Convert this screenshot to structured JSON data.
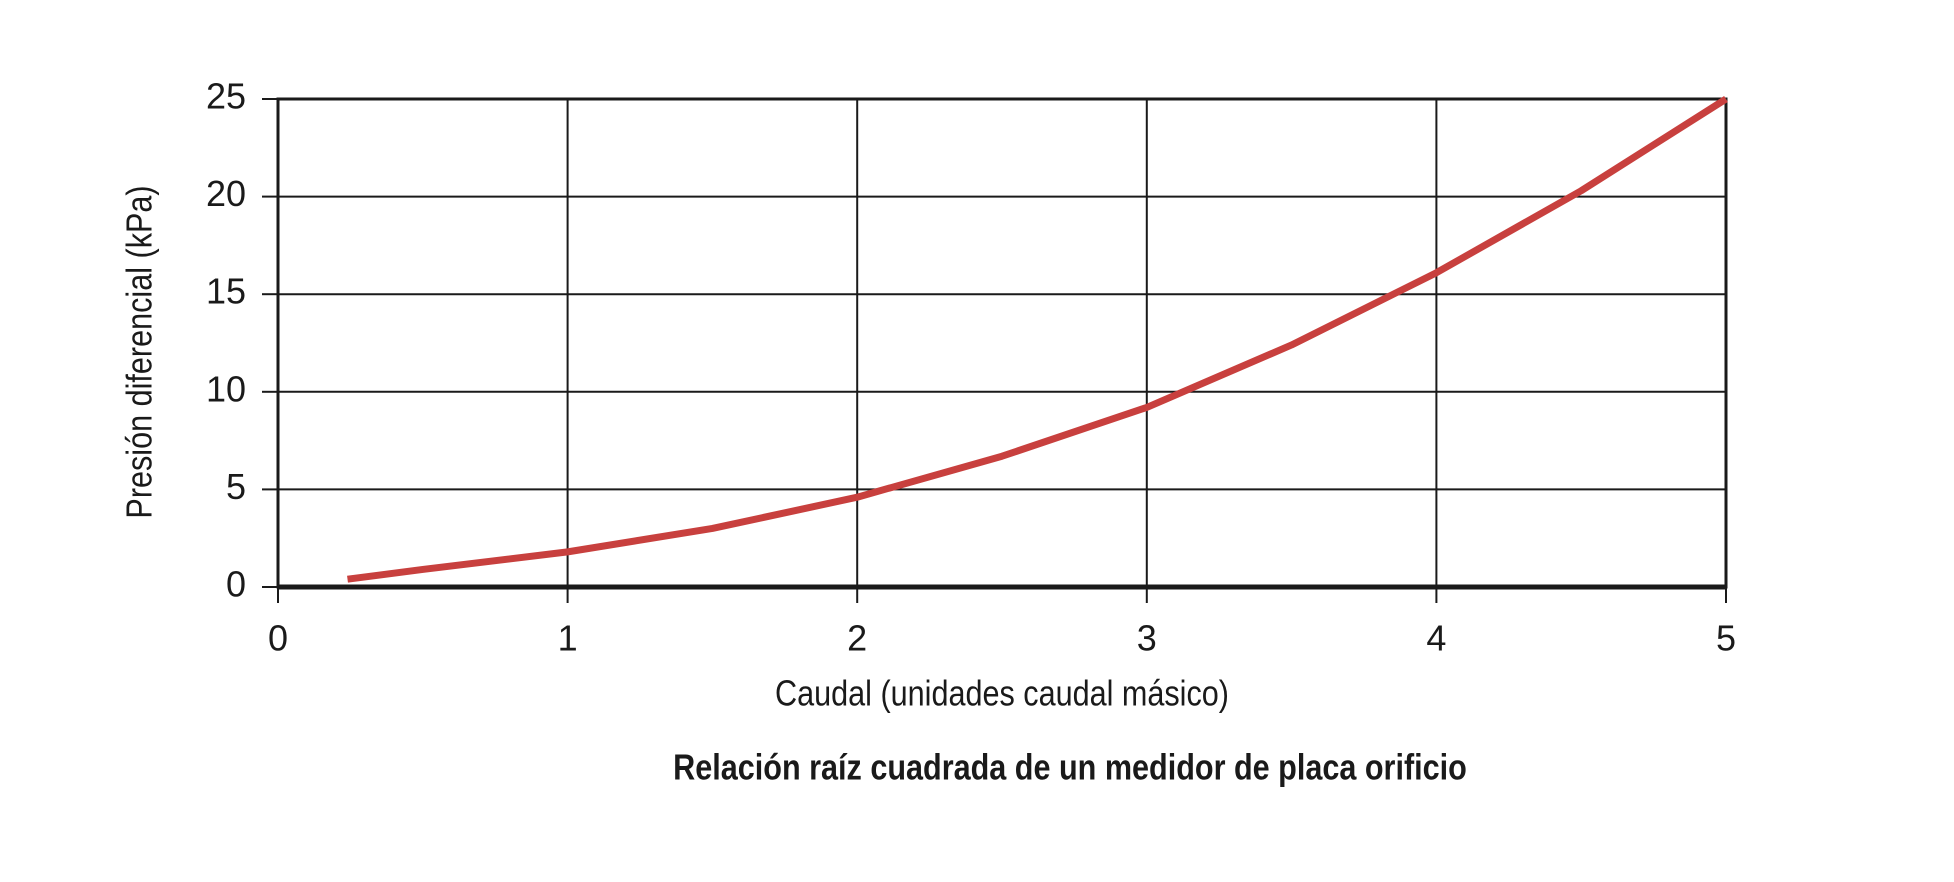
{
  "chart_data": {
    "type": "line",
    "title": "Relación raíz cuadrada de un medidor de placa orificio",
    "xlabel": "Caudal (unidades caudal másico)",
    "ylabel": "Presión diferencial (kPa)",
    "x": [
      0.24,
      0.5,
      1,
      1.5,
      2,
      2.5,
      3,
      3.5,
      4,
      4.5,
      5
    ],
    "series": [
      {
        "name": "Presión diferencial",
        "color": "#c8403e",
        "values": [
          0.4,
          0.9,
          1.8,
          3.0,
          4.6,
          6.7,
          9.2,
          12.4,
          16.1,
          20.3,
          25
        ]
      }
    ],
    "xlim": [
      0,
      5
    ],
    "xticks": [
      0,
      1,
      2,
      3,
      4,
      5
    ],
    "ylim": [
      0,
      25
    ],
    "yticks": [
      0,
      5,
      10,
      15,
      20,
      25
    ],
    "grid": true
  }
}
